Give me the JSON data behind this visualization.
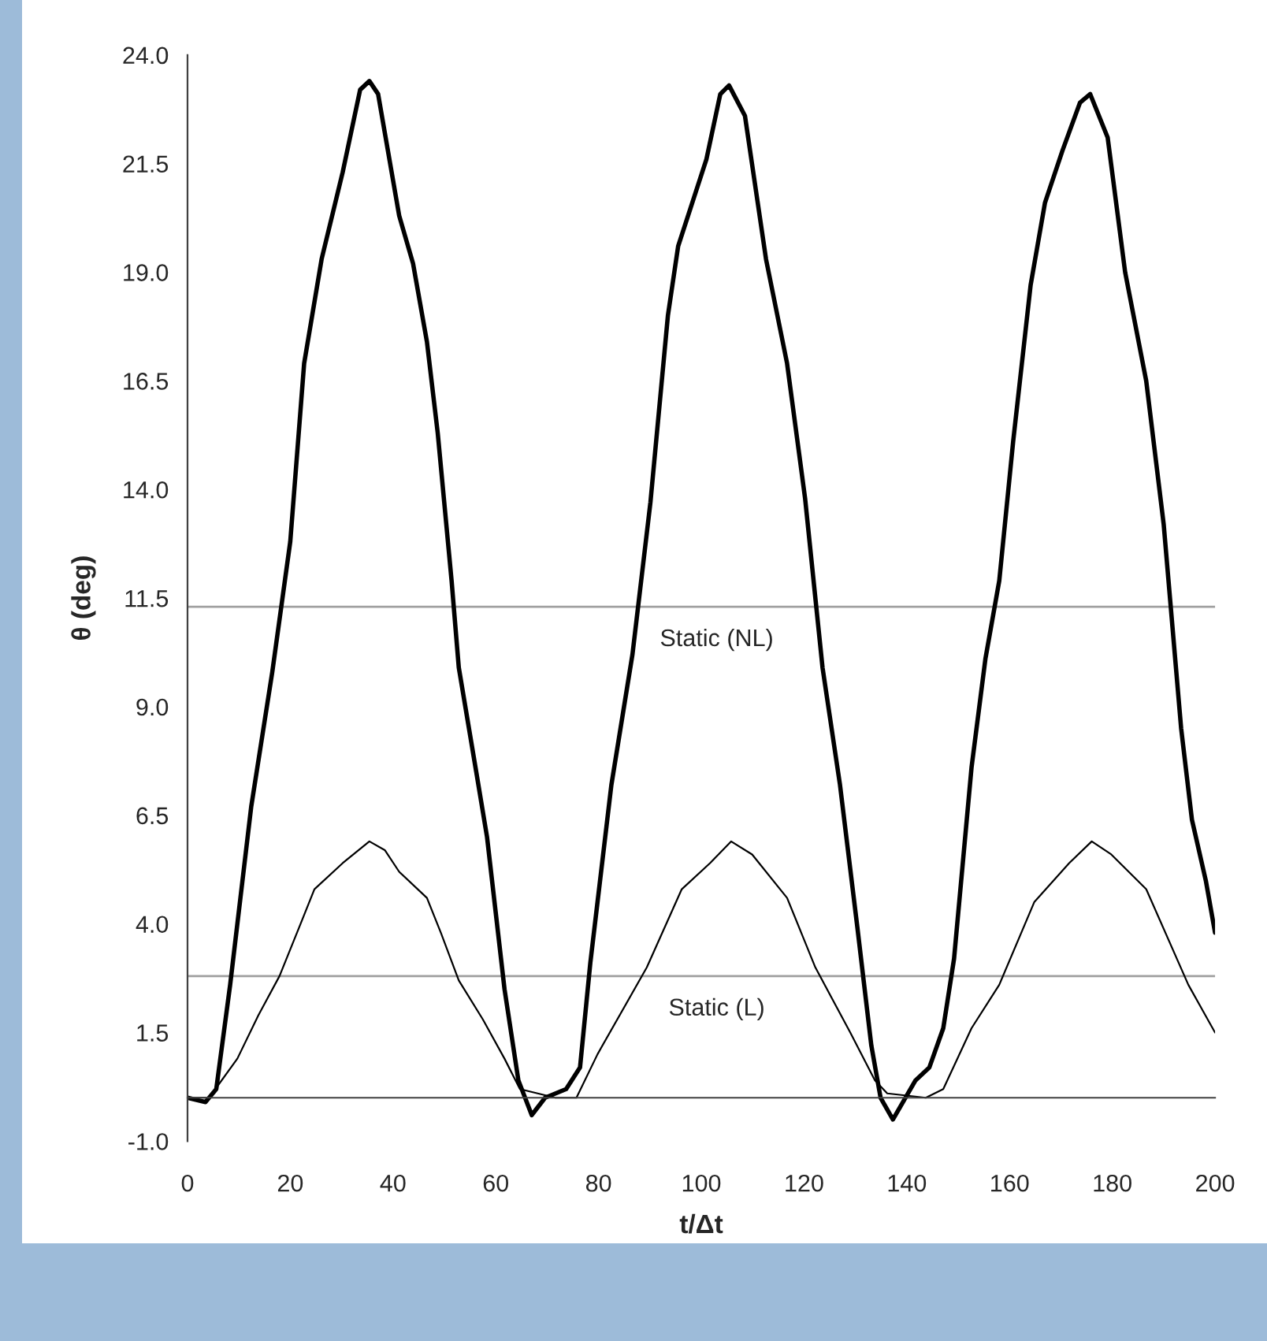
{
  "chart_data": {
    "type": "line",
    "xlabel": "t/Δt",
    "ylabel": "θ (deg)",
    "xlim": [
      0,
      200
    ],
    "xticks": [
      0,
      20,
      40,
      60,
      80,
      100,
      120,
      140,
      160,
      180,
      200
    ],
    "ylim": [
      -1,
      24
    ],
    "yticks": [
      {
        "value": -1,
        "label": "-1.0"
      },
      {
        "value": 1.5,
        "label": "1.5"
      },
      {
        "value": 4,
        "label": "4.0"
      },
      {
        "value": 6.5,
        "label": "6.5"
      },
      {
        "value": 9,
        "label": "9.0"
      },
      {
        "value": 11.5,
        "label": "11.5"
      },
      {
        "value": 14,
        "label": "14.0"
      },
      {
        "value": 16.5,
        "label": "16.5"
      },
      {
        "value": 19,
        "label": "19.0"
      },
      {
        "value": 21.5,
        "label": "21.5"
      },
      {
        "value": 24,
        "label": "24.0"
      }
    ],
    "grid": false,
    "legend": false,
    "marker": "none",
    "line_style": "solid",
    "ref_lines": [
      {
        "axis": "y",
        "value": 11.3,
        "label": "Static (NL)",
        "color": "#a0a0a0"
      },
      {
        "axis": "y",
        "value": 2.8,
        "label": "Static (L)",
        "color": "#a0a0a0"
      }
    ],
    "series": [
      {
        "color": "#000000",
        "x": [
          0,
          3.5,
          5.6,
          8.3,
          12.4,
          16.5,
          20.0,
          22.7,
          26.1,
          30.2,
          33.6,
          35.4,
          37.1,
          41.2,
          43.9,
          46.6,
          48.7,
          51.4,
          52.8,
          56.2,
          58.3,
          61.7,
          64.4,
          67.0,
          69.6,
          73.7,
          76.4,
          78.4,
          82.5,
          86.6,
          90.1,
          93.5,
          95.5,
          101,
          103.7,
          105.4,
          108.5,
          112.6,
          116.7,
          120.2,
          123.6,
          127,
          130.4,
          133.1,
          134.9,
          137.3,
          141.7,
          144.4,
          147.1,
          149.2,
          152.6,
          155.3,
          158,
          160.7,
          164.1,
          166.9,
          170.3,
          173.7,
          175.7,
          179.1,
          182.5,
          186.6,
          190,
          193.4,
          195.5,
          198.2,
          200
        ],
        "values": [
          0.0,
          -0.1,
          0.2,
          2.6,
          6.7,
          9.8,
          12.8,
          16.9,
          19.3,
          21.3,
          23.2,
          23.4,
          23.1,
          20.3,
          19.2,
          17.4,
          15.3,
          11.9,
          9.9,
          7.5,
          6.0,
          2.5,
          0.4,
          -0.4,
          0.0,
          0.2,
          0.7,
          3.1,
          7.2,
          10.2,
          13.7,
          18.0,
          19.6,
          21.6,
          23.1,
          23.3,
          22.6,
          19.3,
          16.9,
          13.8,
          9.9,
          7.2,
          3.9,
          1.2,
          0.0,
          -0.5,
          0.4,
          0.7,
          1.6,
          3.2,
          7.6,
          10.1,
          11.9,
          15.1,
          18.7,
          20.6,
          21.8,
          22.9,
          23.1,
          22.1,
          19.0,
          16.5,
          13.2,
          8.5,
          6.4,
          5.0,
          3.8
        ]
      },
      {
        "color": "#000000",
        "x": [
          0,
          4.2,
          9.7,
          13.8,
          17.9,
          22,
          24.7,
          30.2,
          35.4,
          38.4,
          41.2,
          46.6,
          49.3,
          52.8,
          57.5,
          61.7,
          64.7,
          71.6,
          75.7,
          79.8,
          89.4,
          96.2,
          101.7,
          105.8,
          109.9,
          116.7,
          122.2,
          129,
          133.8,
          136.2,
          143.7,
          147.1,
          152.6,
          158,
          164.8,
          171.6,
          176,
          179.8,
          186.6,
          194.8,
          200
        ],
        "values": [
          0.0,
          0.0,
          0.9,
          1.9,
          2.8,
          4.0,
          4.8,
          5.4,
          5.9,
          5.7,
          5.2,
          4.6,
          3.8,
          2.7,
          1.8,
          0.9,
          0.2,
          0.0,
          0.0,
          1.0,
          3.0,
          4.8,
          5.4,
          5.9,
          5.6,
          4.6,
          3.0,
          1.5,
          0.4,
          0.1,
          0.0,
          0.2,
          1.6,
          2.6,
          4.5,
          5.4,
          5.9,
          5.6,
          4.8,
          2.6,
          1.5
        ]
      }
    ]
  }
}
